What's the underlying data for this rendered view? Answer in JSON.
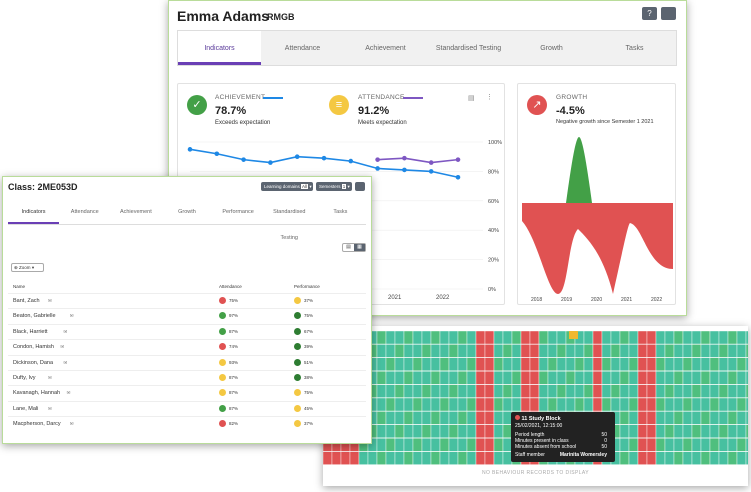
{
  "student": {
    "name": "Emma Adams",
    "form": "RMGB",
    "tabs": [
      "Indicators",
      "Attendance",
      "Achievement",
      "Standardised Testing",
      "Growth",
      "Tasks"
    ],
    "achievement": {
      "label": "ACHIEVEMENT",
      "value": "78.7%",
      "desc": "Exceeds expectation"
    },
    "attendance": {
      "label": "ATTENDANCE",
      "value": "91.2%",
      "desc": "Meets expectation"
    },
    "growth": {
      "label": "GROWTH",
      "value": "-4.5%",
      "desc": "Negative growth since Semester 1 2021"
    },
    "y_ticks": [
      "100%",
      "80%",
      "60%",
      "40%",
      "20%",
      "0%"
    ],
    "x_ticks": [
      "2021",
      "2022"
    ],
    "growth_x": [
      "2018",
      "2019",
      "2020",
      "2021",
      "2022"
    ]
  },
  "chart_data": [
    {
      "type": "line",
      "series": [
        {
          "name": "ACHIEVEMENT",
          "color": "#1e88e5",
          "values": [
            95,
            92,
            88,
            86,
            90,
            89,
            87,
            82,
            81,
            80,
            76
          ]
        },
        {
          "name": "ATTENDANCE",
          "color": "#7e57c2",
          "values": [
            88,
            89,
            86,
            88
          ]
        }
      ],
      "y_ticks": [
        "100%",
        "80%",
        "60%",
        "40%",
        "20%",
        "0%"
      ],
      "x_ticks": [
        "2021",
        "2022"
      ],
      "ylim": [
        0,
        100
      ]
    },
    {
      "type": "area",
      "title": "GROWTH",
      "positive_color": "#43a047",
      "negative_color": "#e05252",
      "x_ticks": [
        "2018",
        "2019",
        "2020",
        "2021",
        "2022"
      ]
    }
  ],
  "klass": {
    "title": "Class: 2ME053D",
    "learning_domains": "Learning domains",
    "ld_badge": "All",
    "semesters": "Semesters",
    "sem_badge": "1",
    "tabs": [
      "Indicators",
      "Attendance",
      "Achievement",
      "Growth",
      "Performance",
      "Standardised Testing",
      "Tasks"
    ],
    "zoom": "Zoom",
    "cols": [
      "Name",
      "Attendance",
      "Performance"
    ],
    "rows": [
      {
        "name": "Bant, Zach",
        "att": "75%",
        "att_c": "#e05252",
        "perf": "37%",
        "perf_c": "#f4c842"
      },
      {
        "name": "Beaton, Gabrielle",
        "att": "97%",
        "att_c": "#43a047",
        "perf": "75%",
        "perf_c": "#2e7d32"
      },
      {
        "name": "Black, Harriett",
        "att": "87%",
        "att_c": "#43a047",
        "perf": "67%",
        "perf_c": "#2e7d32"
      },
      {
        "name": "Condon, Hamish",
        "att": "74%",
        "att_c": "#e05252",
        "perf": "39%",
        "perf_c": "#2e7d32"
      },
      {
        "name": "Dickinson, Dana",
        "att": "93%",
        "att_c": "#f4c842",
        "perf": "51%",
        "perf_c": "#2e7d32"
      },
      {
        "name": "Dufty, Ivy",
        "att": "87%",
        "att_c": "#f4c842",
        "perf": "38%",
        "perf_c": "#2e7d32"
      },
      {
        "name": "Kavanagh, Hannah",
        "att": "87%",
        "att_c": "#f4c842",
        "perf": "75%",
        "perf_c": "#f4c842"
      },
      {
        "name": "Lane, Mali",
        "att": "87%",
        "att_c": "#43a047",
        "perf": "45%",
        "perf_c": "#f4c842"
      },
      {
        "name": "Macpherson, Darcy",
        "att": "82%",
        "att_c": "#e05252",
        "perf": "37%",
        "perf_c": "#f4c842"
      }
    ]
  },
  "tooltip": {
    "title": "11 Study Block",
    "date": "25/02/2021, 12:15:00",
    "lines": [
      {
        "k": "Period length",
        "v": "50"
      },
      {
        "k": "Minutes present in class",
        "v": "0"
      },
      {
        "k": "Minutes absent from school",
        "v": "50"
      },
      {
        "k": "Staff member",
        "v": "Marinita Womersley"
      }
    ]
  },
  "heat_footer": "NO BEHAVIOUR RECORDS TO DISPLAY"
}
